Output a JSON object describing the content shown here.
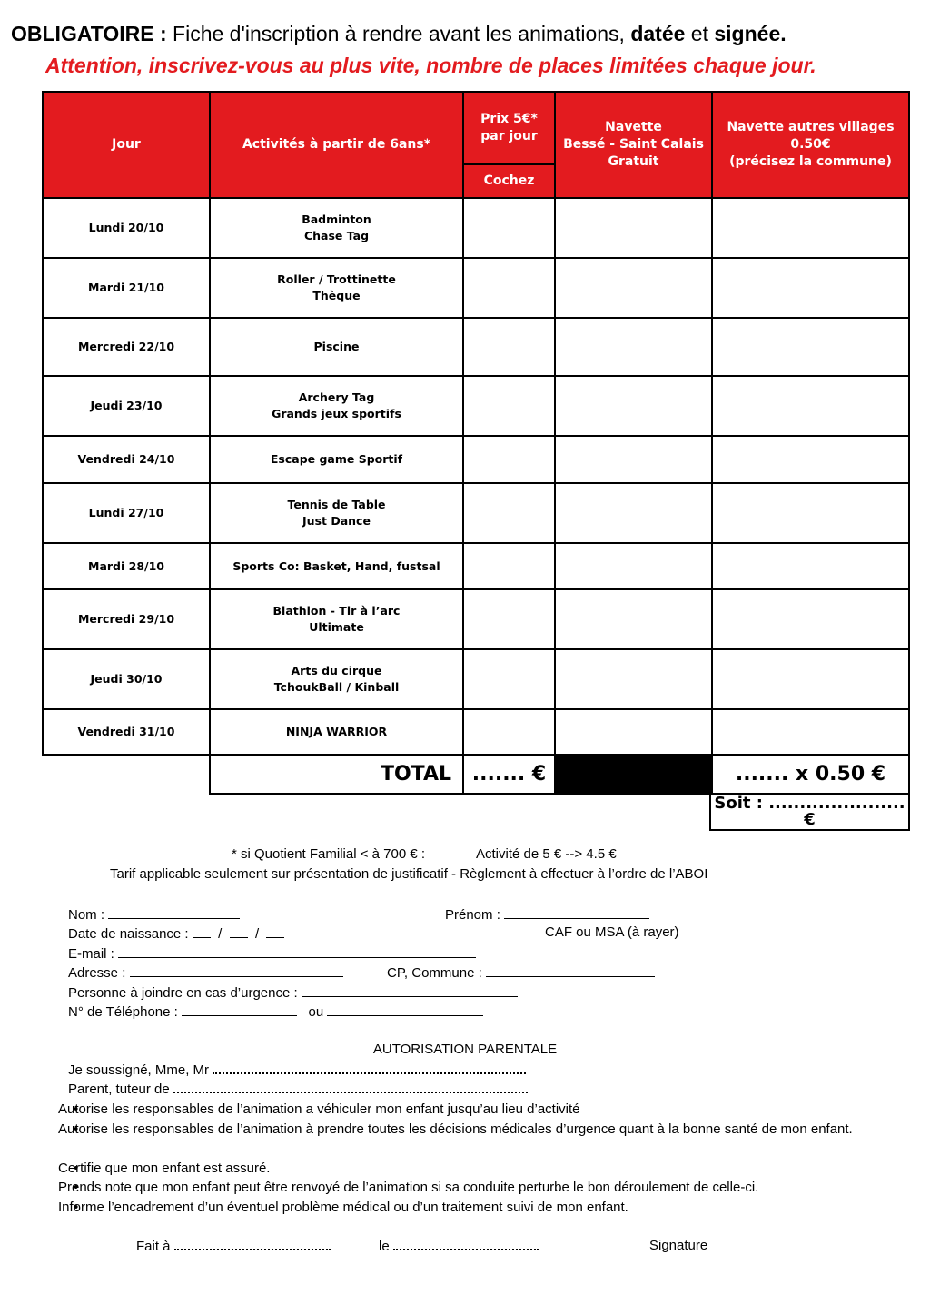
{
  "header": {
    "notice_label": "OBLIGATOIRE :",
    "notice_text": "Fiche d'inscription à rendre avant les animations,",
    "notice_bold_1": "datée",
    "notice_and": "et",
    "notice_bold_2": "signée.",
    "warning": "Attention, inscrivez-vous au plus vite, nombre de places limitées chaque jour."
  },
  "table": {
    "columns": [
      {
        "lines": [
          "Jour"
        ]
      },
      {
        "lines": [
          "Activités à partir de 6ans*"
        ]
      },
      {
        "lines": [
          "Prix 5€*",
          "par jour"
        ],
        "sub": "Cochez"
      },
      {
        "lines": [
          "Navette",
          "Bessé - Saint Calais",
          "Gratuit"
        ]
      },
      {
        "lines": [
          "Navette autres villages",
          "0.50€",
          "(précisez la commune)"
        ]
      }
    ],
    "rows": [
      {
        "day": "Lundi 20/10",
        "activities": [
          "Badminton",
          "Chase Tag"
        ]
      },
      {
        "day": "Mardi 21/10",
        "activities": [
          "Roller / Trottinette",
          "Thèque"
        ]
      },
      {
        "day": "Mercredi 22/10",
        "activities": [
          "Piscine"
        ]
      },
      {
        "day": "Jeudi 23/10",
        "activities": [
          "Archery Tag",
          "Grands jeux sportifs"
        ]
      },
      {
        "day": "Vendredi 24/10",
        "activities": [
          "Escape game Sportif"
        ]
      },
      {
        "day": "Lundi 27/10",
        "activities": [
          "Tennis de Table",
          "Just Dance"
        ]
      },
      {
        "day": "Mardi 28/10",
        "activities": [
          "Sports Co: Basket, Hand, fustsal"
        ]
      },
      {
        "day": "Mercredi 29/10",
        "activities": [
          "Biathlon - Tir à l’arc",
          "Ultimate"
        ]
      },
      {
        "day": "Jeudi 30/10",
        "activities": [
          "Arts du cirque",
          "TchoukBall / Kinball"
        ]
      },
      {
        "day": "Vendredi 31/10",
        "activities": [
          "NINJA WARRIOR"
        ]
      }
    ],
    "total": {
      "label": "TOTAL",
      "price": "....... €",
      "shuttle": "....... x 0.50 €",
      "sum": "Soit : ...................... €"
    }
  },
  "notes": {
    "qf": "* si Quotient Familial < à 700 € :",
    "reduction": "Activité de 5 € --> 4.5 €",
    "conditions": "Tarif applicable seulement sur présentation de justificatif  - Règlement à effectuer à l’ordre de l’ABOI"
  },
  "form": {
    "name": "Nom :",
    "first_name": "Prénom :",
    "birth": "Date de naissance :",
    "date_separator": "/",
    "caf": "CAF ou MSA (à rayer)",
    "email": "E-mail :",
    "address": "Adresse :",
    "city": "CP, Commune :",
    "emergency": "Personne à joindre en cas d’urgence :",
    "phone": "N° de Téléphone :",
    "or": "ou"
  },
  "authorization": {
    "title": "AUTORISATION PARENTALE",
    "undersigned": "Je soussigné, Mme, Mr",
    "guardian": "Parent, tuteur de",
    "items": [
      "Autorise les responsables de l’animation a véhiculer mon enfant jusqu’au lieu d’activité",
      "Autorise les responsables de l’animation à prendre toutes les décisions médicales d’urgence quant à la bonne santé de mon enfant.",
      "Certifie que mon enfant est assuré.",
      "Prends note que mon enfant peut être renvoyé de l’animation si sa conduite perturbe le bon déroulement de celle-ci.",
      "Informe l’encadrement d’un éventuel problème médical ou d’un traitement suivi de mon enfant."
    ]
  },
  "footer": {
    "place": "Fait à",
    "date": "le",
    "signature": "Signature"
  }
}
